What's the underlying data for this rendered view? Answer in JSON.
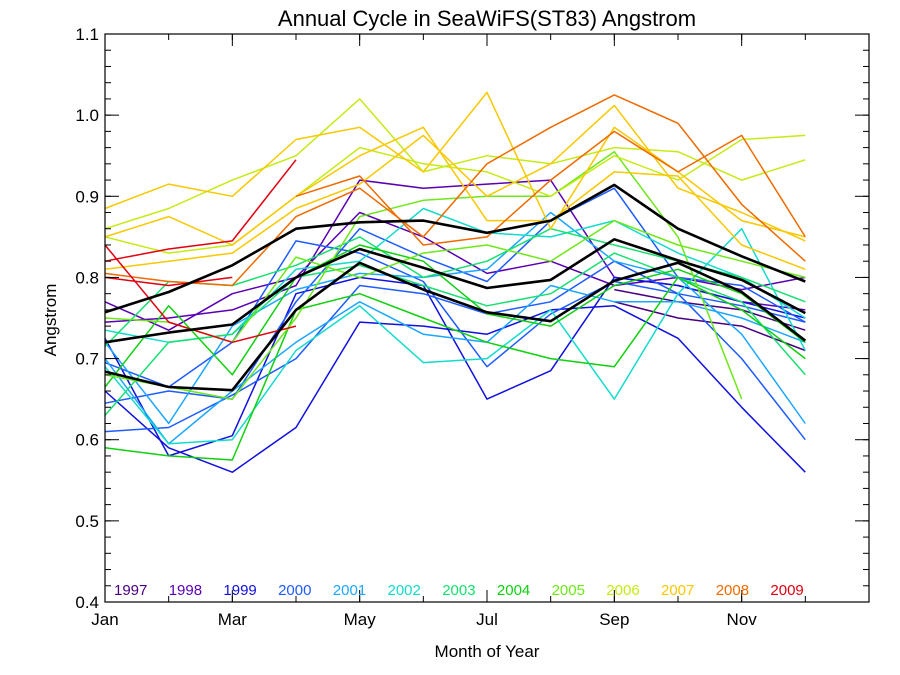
{
  "chart_data": {
    "type": "line",
    "title": "Annual Cycle in SeaWiFS(ST83) Angstrom",
    "xlabel": "Month of Year",
    "ylabel": "Angstrom",
    "xlim": [
      1,
      13
    ],
    "ylim": [
      0.4,
      1.1
    ],
    "x_ticks": [
      {
        "value": 1,
        "label": "Jan"
      },
      {
        "value": 3,
        "label": "Mar"
      },
      {
        "value": 5,
        "label": "May"
      },
      {
        "value": 7,
        "label": "Jul"
      },
      {
        "value": 9,
        "label": "Sep"
      },
      {
        "value": 11,
        "label": "Nov"
      }
    ],
    "y_ticks": [
      {
        "value": 0.4,
        "label": "0.4"
      },
      {
        "value": 0.5,
        "label": "0.5"
      },
      {
        "value": 0.6,
        "label": "0.6"
      },
      {
        "value": 0.7,
        "label": "0.7"
      },
      {
        "value": 0.8,
        "label": "0.8"
      },
      {
        "value": 0.9,
        "label": "0.9"
      },
      {
        "value": 1.0,
        "label": "1.0"
      },
      {
        "value": 1.1,
        "label": "1.1"
      }
    ],
    "grid": false,
    "legend_position": "bottom",
    "legend": [
      {
        "label": "1997",
        "color": "#4a0080"
      },
      {
        "label": "1998",
        "color": "#5a00b4"
      },
      {
        "label": "1999",
        "color": "#1010e0"
      },
      {
        "label": "2000",
        "color": "#1e5cff"
      },
      {
        "label": "2001",
        "color": "#1ca6ff"
      },
      {
        "label": "2002",
        "color": "#14dccc"
      },
      {
        "label": "2003",
        "color": "#18e070"
      },
      {
        "label": "2004",
        "color": "#10d010"
      },
      {
        "label": "2005",
        "color": "#6ee818"
      },
      {
        "label": "2006",
        "color": "#c4ec14"
      },
      {
        "label": "2007",
        "color": "#f8c800"
      },
      {
        "label": "2008",
        "color": "#f06a00"
      },
      {
        "label": "2009",
        "color": "#e00010"
      }
    ],
    "x": [
      1,
      2,
      3,
      4,
      5,
      6,
      7,
      8,
      9,
      10,
      11,
      12
    ],
    "series": [
      {
        "color": "#4a0080",
        "values": [
          null,
          null,
          null,
          null,
          null,
          null,
          null,
          null,
          0.785,
          0.77,
          0.76,
          0.735
        ]
      },
      {
        "color": "#4a0080",
        "values": [
          null,
          null,
          null,
          null,
          null,
          null,
          null,
          null,
          0.77,
          0.75,
          0.74,
          0.71
        ]
      },
      {
        "color": "#5a00b4",
        "values": [
          0.77,
          0.735,
          0.78,
          0.8,
          0.88,
          0.85,
          0.805,
          0.82,
          0.79,
          0.8,
          0.785,
          0.8
        ]
      },
      {
        "color": "#5a00b4",
        "values": [
          0.745,
          0.75,
          0.76,
          0.79,
          0.92,
          0.91,
          0.915,
          0.92,
          0.8,
          0.79,
          0.77,
          0.76
        ]
      },
      {
        "color": "#1010e0",
        "values": [
          0.725,
          0.58,
          0.605,
          0.78,
          0.8,
          0.79,
          0.65,
          0.685,
          0.8,
          0.79,
          0.77,
          0.75
        ]
      },
      {
        "color": "#1010e0",
        "values": [
          0.66,
          0.59,
          0.56,
          0.615,
          0.745,
          0.74,
          0.73,
          0.76,
          0.765,
          0.725,
          0.64,
          0.56
        ]
      },
      {
        "color": "#1e5cff",
        "values": [
          0.695,
          0.665,
          0.72,
          0.845,
          0.83,
          0.795,
          0.69,
          0.755,
          0.795,
          0.78,
          0.765,
          0.745
        ]
      },
      {
        "color": "#1e5cff",
        "values": [
          0.645,
          0.66,
          0.65,
          0.77,
          0.86,
          0.825,
          0.795,
          0.87,
          0.91,
          0.8,
          0.79,
          0.745
        ]
      },
      {
        "color": "#1e5cff",
        "values": [
          0.61,
          0.615,
          0.655,
          0.7,
          0.79,
          0.78,
          0.755,
          0.77,
          0.82,
          0.78,
          0.7,
          0.6
        ]
      },
      {
        "color": "#1ca6ff",
        "values": [
          0.72,
          0.62,
          0.74,
          0.785,
          0.805,
          0.8,
          0.81,
          0.88,
          0.82,
          0.8,
          0.73,
          0.62
        ]
      },
      {
        "color": "#1ca6ff",
        "values": [
          0.7,
          0.595,
          0.66,
          0.72,
          0.77,
          0.73,
          0.72,
          0.79,
          0.77,
          0.77,
          0.75,
          0.72
        ]
      },
      {
        "color": "#14dccc",
        "values": [
          0.69,
          0.595,
          0.6,
          0.71,
          0.765,
          0.695,
          0.7,
          0.76,
          0.65,
          0.78,
          0.86,
          0.71
        ]
      },
      {
        "color": "#14dccc",
        "values": [
          0.735,
          0.72,
          0.73,
          0.81,
          0.82,
          0.885,
          0.855,
          0.85,
          0.87,
          0.83,
          0.8,
          0.75
        ]
      },
      {
        "color": "#18e070",
        "values": [
          0.715,
          0.795,
          0.79,
          0.815,
          0.85,
          0.8,
          0.82,
          0.86,
          0.84,
          0.82,
          0.8,
          0.77
        ]
      },
      {
        "color": "#18e070",
        "values": [
          0.63,
          0.72,
          0.73,
          0.8,
          0.815,
          0.79,
          0.765,
          0.78,
          0.83,
          0.8,
          0.77,
          0.68
        ]
      },
      {
        "color": "#10d010",
        "values": [
          0.59,
          0.58,
          0.575,
          0.76,
          0.78,
          0.75,
          0.72,
          0.7,
          0.69,
          0.8,
          0.76,
          0.7
        ]
      },
      {
        "color": "#10d010",
        "values": [
          0.665,
          0.765,
          0.68,
          0.8,
          0.84,
          0.82,
          0.755,
          0.74,
          0.79,
          0.81,
          0.78,
          0.72
        ]
      },
      {
        "color": "#6ee818",
        "values": [
          0.68,
          0.665,
          0.65,
          0.75,
          0.875,
          0.895,
          0.9,
          0.9,
          0.955,
          0.85,
          0.65,
          null
        ]
      },
      {
        "color": "#6ee818",
        "values": [
          0.75,
          0.745,
          0.72,
          0.825,
          0.8,
          0.83,
          0.84,
          0.82,
          0.87,
          0.84,
          0.82,
          0.8
        ]
      },
      {
        "color": "#c4ec14",
        "values": [
          0.86,
          0.885,
          0.92,
          0.95,
          1.02,
          0.93,
          0.95,
          0.94,
          0.96,
          0.955,
          0.92,
          0.945
        ]
      },
      {
        "color": "#c4ec14",
        "values": [
          0.85,
          0.83,
          0.84,
          0.9,
          0.96,
          0.94,
          0.93,
          0.9,
          0.95,
          0.92,
          0.97,
          0.975
        ]
      },
      {
        "color": "#f8c800",
        "values": [
          0.885,
          0.915,
          0.9,
          0.97,
          0.985,
          0.93,
          1.028,
          0.86,
          0.985,
          0.93,
          0.87,
          0.85
        ]
      },
      {
        "color": "#f8c800",
        "values": [
          0.85,
          0.875,
          0.84,
          0.9,
          0.95,
          0.985,
          0.87,
          0.87,
          0.93,
          0.925,
          0.84,
          0.81
        ]
      },
      {
        "color": "#f8c800",
        "values": [
          0.81,
          0.82,
          0.83,
          0.885,
          0.915,
          0.975,
          0.9,
          0.94,
          1.012,
          0.91,
          0.88,
          0.845
        ]
      },
      {
        "color": "#f06a00",
        "values": [
          0.805,
          0.795,
          0.79,
          0.875,
          0.91,
          0.85,
          0.94,
          0.985,
          1.025,
          0.99,
          0.89,
          0.82
        ]
      },
      {
        "color": "#f06a00",
        "values": [
          null,
          null,
          null,
          0.9,
          0.925,
          0.84,
          0.85,
          0.92,
          0.98,
          0.93,
          0.975,
          0.85
        ]
      },
      {
        "color": "#e00010",
        "values": [
          0.82,
          0.835,
          0.845,
          0.945,
          null,
          null,
          null,
          null,
          null,
          null,
          null,
          null
        ]
      },
      {
        "color": "#e00010",
        "values": [
          0.84,
          0.745,
          0.72,
          0.74,
          null,
          null,
          null,
          null,
          null,
          null,
          null,
          null
        ]
      },
      {
        "color": "#e00010",
        "values": [
          0.8,
          0.79,
          0.8,
          null,
          null,
          null,
          null,
          null,
          null,
          null,
          null,
          null
        ]
      }
    ],
    "statistics": [
      {
        "values": [
          0.757,
          0.782,
          0.815,
          0.86,
          0.868,
          0.87,
          0.855,
          0.87,
          0.914,
          0.86,
          0.826,
          0.795
        ]
      },
      {
        "values": [
          0.72,
          0.732,
          0.742,
          0.8,
          0.835,
          0.812,
          0.787,
          0.797,
          0.847,
          0.821,
          0.797,
          0.756
        ]
      },
      {
        "values": [
          0.684,
          0.665,
          0.661,
          0.76,
          0.818,
          0.785,
          0.757,
          0.746,
          0.796,
          0.818,
          0.782,
          0.722
        ]
      }
    ]
  }
}
